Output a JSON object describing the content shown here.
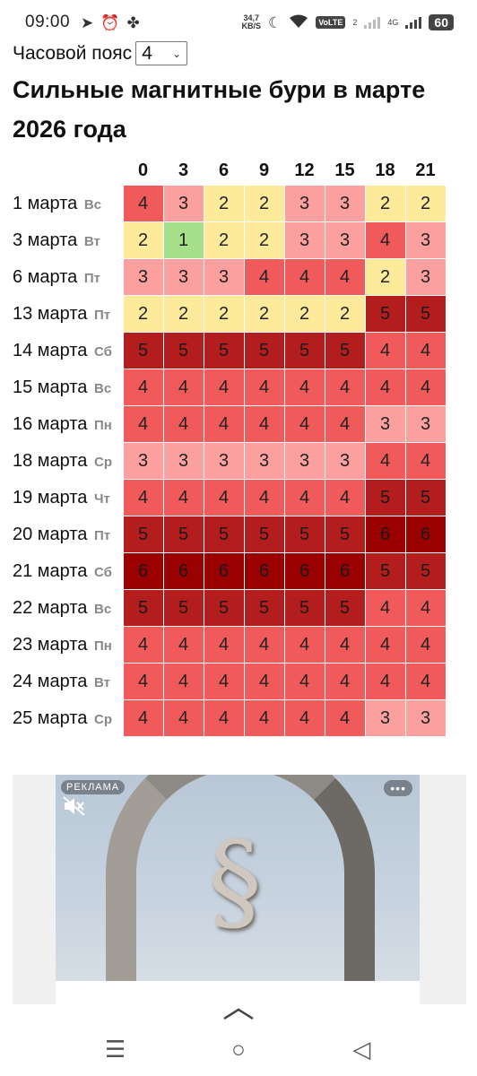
{
  "status_bar": {
    "time": "09:00",
    "net_speed_value": "34,7",
    "net_speed_unit": "KB/S",
    "volte": "VoLTE",
    "sim1": "2",
    "net_type": "4G",
    "battery": "60"
  },
  "timezone": {
    "label": "Часовой пояс",
    "value": "4"
  },
  "title": "Сильные магнитные бури в марте 2026 года",
  "table": {
    "hours": [
      "0",
      "3",
      "6",
      "9",
      "12",
      "15",
      "18",
      "21"
    ],
    "rows": [
      {
        "date": "1 марта",
        "dow": "Вс",
        "values": [
          4,
          3,
          2,
          2,
          3,
          3,
          2,
          2
        ]
      },
      {
        "date": "3 марта",
        "dow": "Вт",
        "values": [
          2,
          1,
          2,
          2,
          3,
          3,
          4,
          3
        ]
      },
      {
        "date": "6 марта",
        "dow": "Пт",
        "values": [
          3,
          3,
          3,
          4,
          4,
          4,
          2,
          3
        ]
      },
      {
        "date": "13 марта",
        "dow": "Пт",
        "values": [
          2,
          2,
          2,
          2,
          2,
          2,
          5,
          5
        ]
      },
      {
        "date": "14 марта",
        "dow": "Сб",
        "values": [
          5,
          5,
          5,
          5,
          5,
          5,
          4,
          4
        ]
      },
      {
        "date": "15 марта",
        "dow": "Вс",
        "values": [
          4,
          4,
          4,
          4,
          4,
          4,
          4,
          4
        ]
      },
      {
        "date": "16 марта",
        "dow": "Пн",
        "values": [
          4,
          4,
          4,
          4,
          4,
          4,
          3,
          3
        ]
      },
      {
        "date": "18 марта",
        "dow": "Ср",
        "values": [
          3,
          3,
          3,
          3,
          3,
          3,
          4,
          4
        ]
      },
      {
        "date": "19 марта",
        "dow": "Чт",
        "values": [
          4,
          4,
          4,
          4,
          4,
          4,
          5,
          5
        ]
      },
      {
        "date": "20 марта",
        "dow": "Пт",
        "values": [
          5,
          5,
          5,
          5,
          5,
          5,
          6,
          6
        ]
      },
      {
        "date": "21 марта",
        "dow": "Сб",
        "values": [
          6,
          6,
          6,
          6,
          6,
          6,
          5,
          5
        ]
      },
      {
        "date": "22 марта",
        "dow": "Вс",
        "values": [
          5,
          5,
          5,
          5,
          5,
          5,
          4,
          4
        ]
      },
      {
        "date": "23 марта",
        "dow": "Пн",
        "values": [
          4,
          4,
          4,
          4,
          4,
          4,
          4,
          4
        ]
      },
      {
        "date": "24 марта",
        "dow": "Вт",
        "values": [
          4,
          4,
          4,
          4,
          4,
          4,
          4,
          4
        ]
      },
      {
        "date": "25 марта",
        "dow": "Ср",
        "values": [
          4,
          4,
          4,
          4,
          4,
          4,
          3,
          3
        ]
      }
    ]
  },
  "level_colors": {
    "1": "#a6e08a",
    "2": "#fdea9b",
    "3": "#fb9f9f",
    "4": "#f15a5a",
    "5": "#b31d1d",
    "6": "#9a0000"
  },
  "ad": {
    "badge": "РЕКЛАМА",
    "more": "•••",
    "logo_glyph": "§",
    "mute_icon": "muted-speaker-icon"
  },
  "nav": {
    "recents": "☰",
    "home": "○",
    "back": "◁",
    "handle": "︿"
  }
}
